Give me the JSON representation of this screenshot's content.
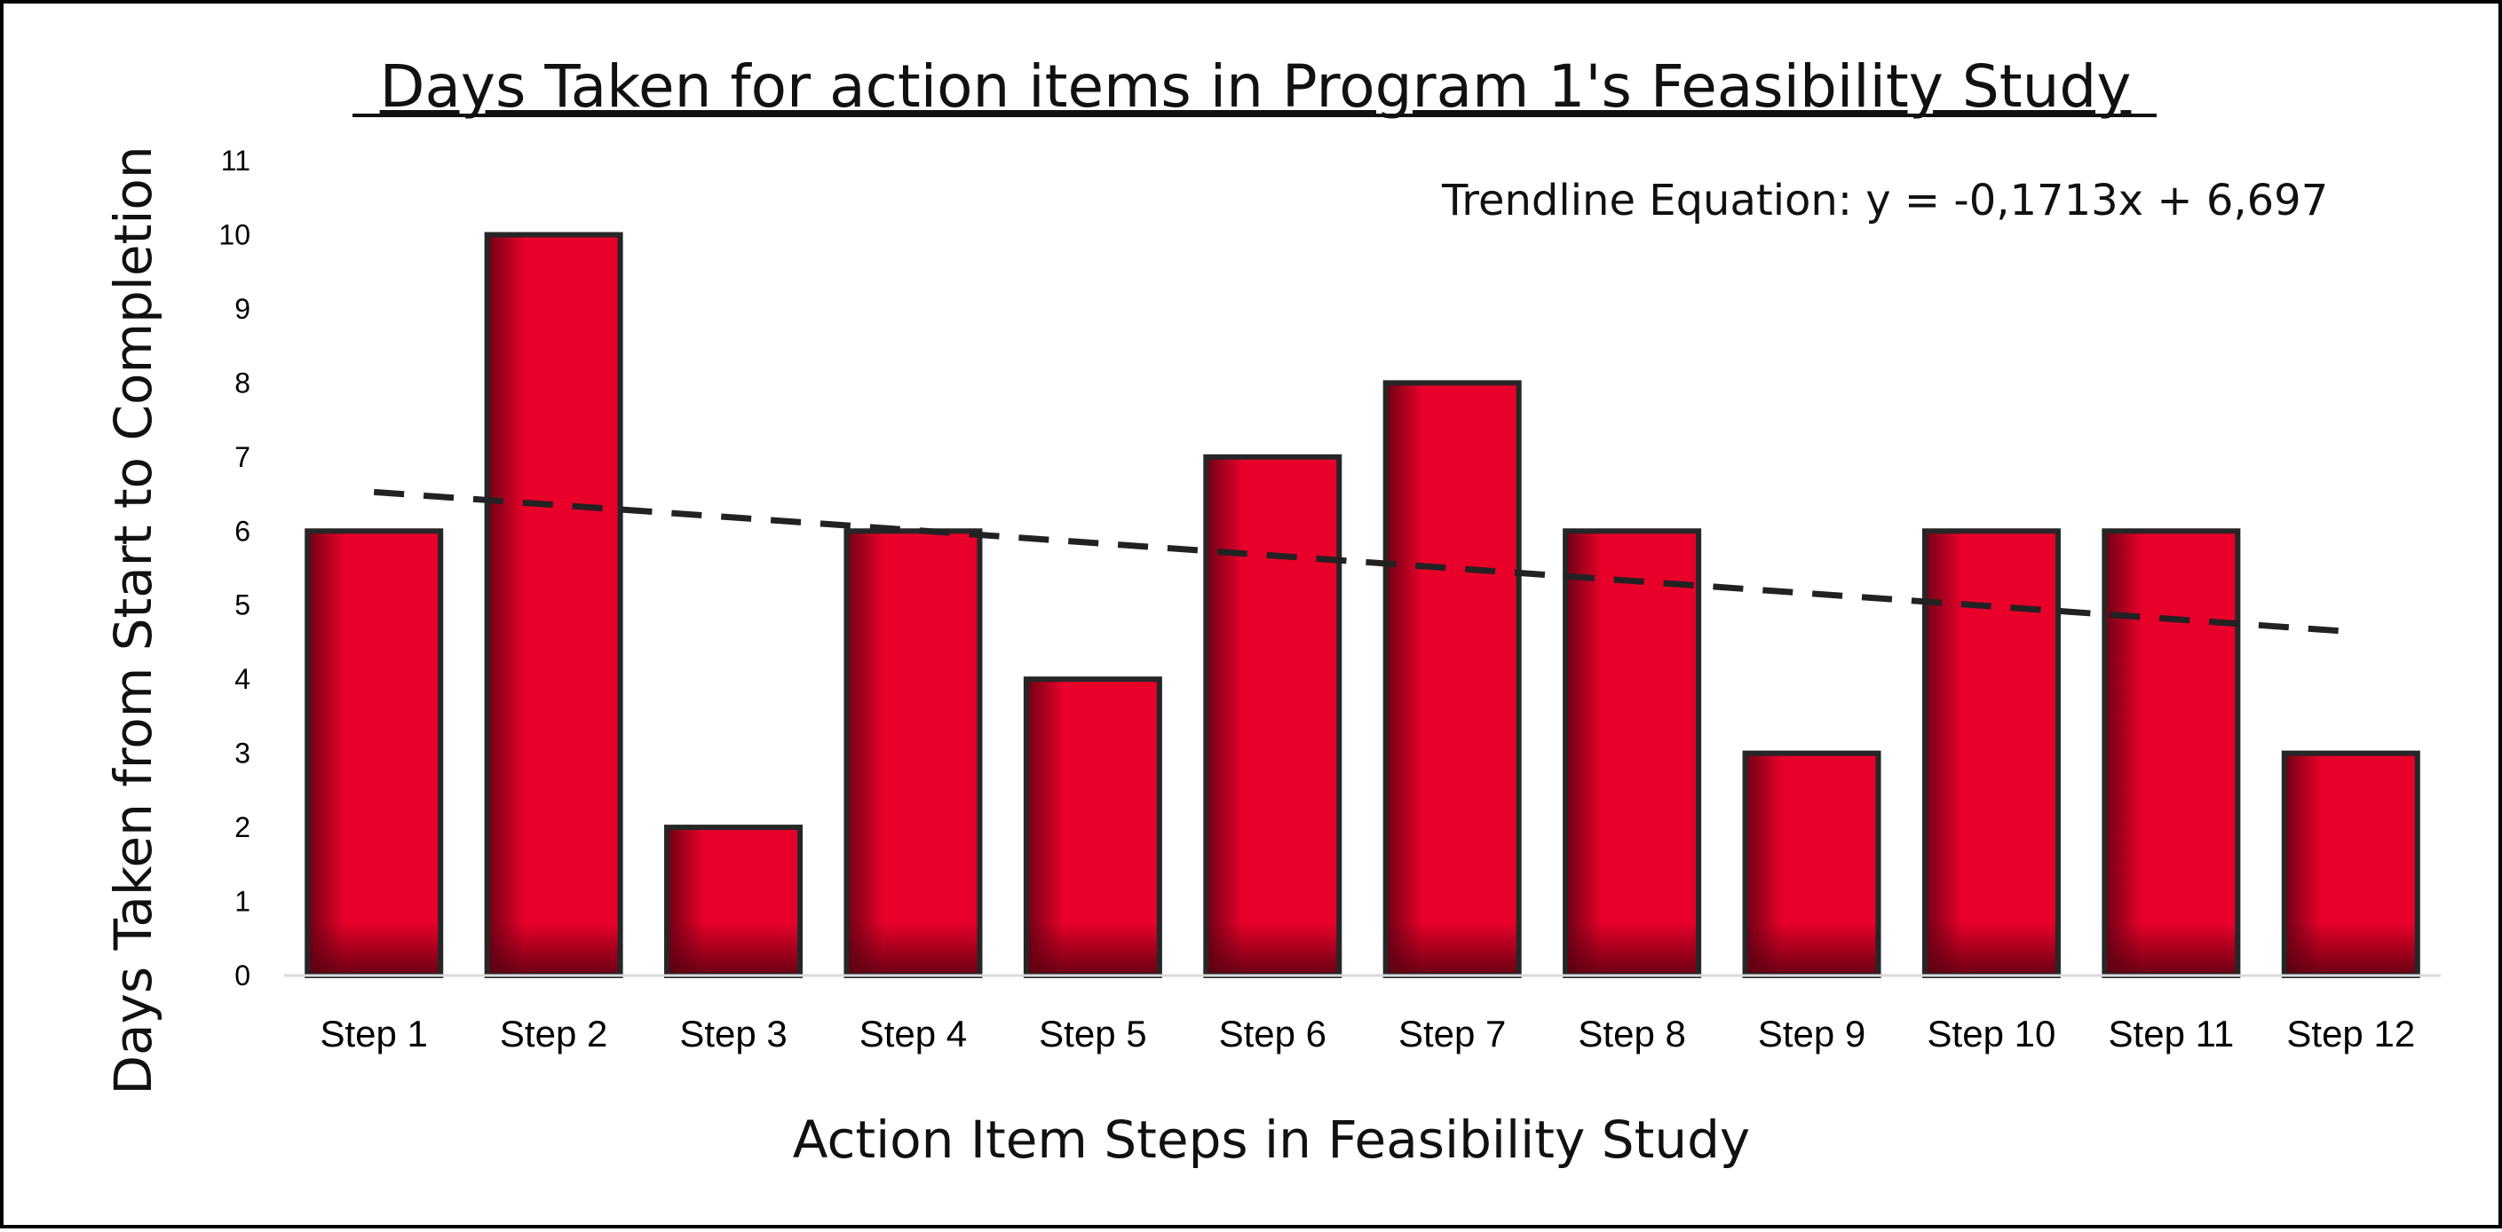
{
  "chart_data": {
    "type": "bar",
    "title": "Days Taken for action items in Program 1's Feasibility Study",
    "xlabel": "Action Item Steps in Feasibility Study",
    "ylabel": "Days Taken from Start to Completion",
    "categories": [
      "Step 1",
      "Step 2",
      "Step 3",
      "Step 4",
      "Step 5",
      "Step 6",
      "Step 7",
      "Step 8",
      "Step 9",
      "Step 10",
      "Step 11",
      "Step 12"
    ],
    "values": [
      6,
      10,
      2,
      6,
      4,
      7,
      8,
      6,
      3,
      6,
      6,
      3
    ],
    "ylim": [
      0,
      11
    ],
    "yticks": [
      0,
      1,
      2,
      3,
      4,
      5,
      6,
      7,
      8,
      9,
      10,
      11
    ],
    "grid": false,
    "legend": "none",
    "trendline": {
      "type": "linear",
      "slope": -0.1713,
      "intercept": 6.697,
      "style": "dashed",
      "color": "#222222"
    },
    "annotation": "Trendline Equation: y = -0,1713x + 6,697",
    "colors": {
      "bar_fill": "#e8002a",
      "bar_shade": "#6d0014",
      "bar_outline": "#262626"
    }
  }
}
